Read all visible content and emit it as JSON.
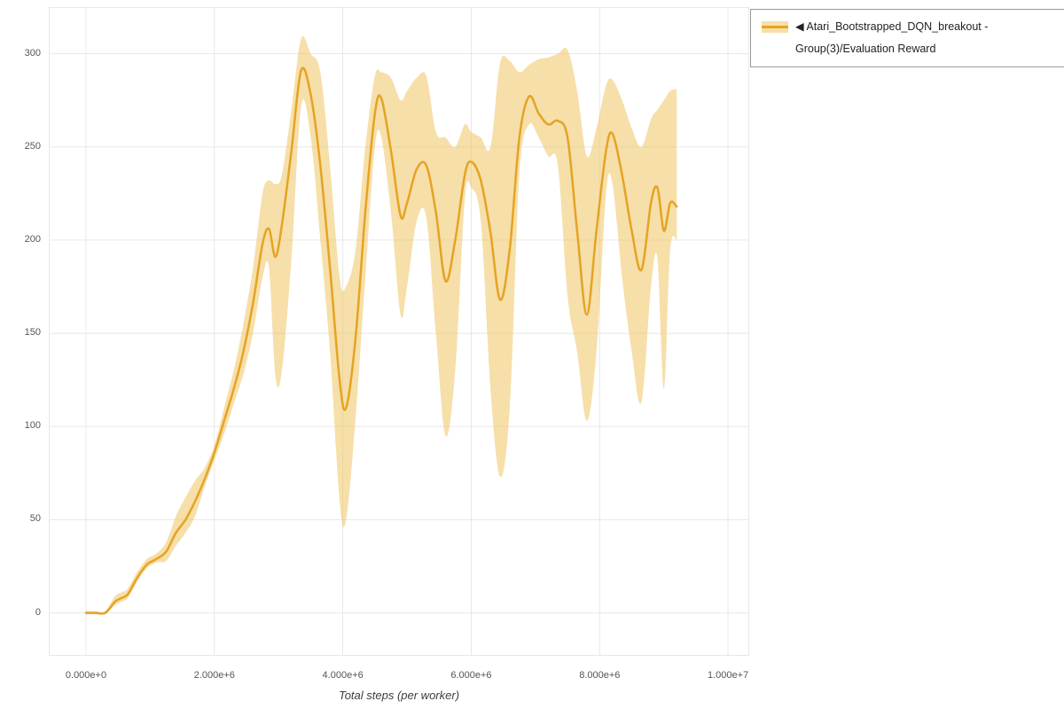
{
  "legend": {
    "marker": "◀",
    "label": "Atari_Bootstrapped_DQN_breakout - Group(3)/Evaluation Reward"
  },
  "chart_data": {
    "type": "line",
    "title": "",
    "xlabel": "Total steps (per worker)",
    "ylabel": "",
    "x_unit": "millions of steps",
    "xlim": [
      -0.58,
      10.33
    ],
    "ylim": [
      -23,
      325
    ],
    "grid": true,
    "legend_position": "top-right-outside",
    "x_ticks": {
      "values": [
        0,
        2,
        4,
        6,
        8,
        10
      ],
      "labels": [
        "0.000e+0",
        "2.000e+6",
        "4.000e+6",
        "6.000e+6",
        "8.000e+6",
        "1.000e+7"
      ]
    },
    "y_ticks": {
      "values": [
        0,
        50,
        100,
        150,
        200,
        250,
        300
      ],
      "labels": [
        "0",
        "50",
        "100",
        "150",
        "200",
        "250",
        "300"
      ]
    },
    "colors": {
      "grid": "#e8e8e8",
      "tick_text": "#555555",
      "axis_title": "#3d3d3d",
      "legend_border": "#999999",
      "background": "#ffffff"
    },
    "series": [
      {
        "name": "Atari_Bootstrapped_DQN_breakout - Group(3)/Evaluation Reward",
        "color": "#e6a323",
        "band_color": "#efc463",
        "band_opacity": 0.55,
        "x": [
          0,
          0.15,
          0.3,
          0.45,
          0.55,
          0.65,
          0.8,
          0.95,
          1.1,
          1.25,
          1.4,
          1.55,
          1.7,
          1.85,
          2,
          2.15,
          2.3,
          2.45,
          2.6,
          2.75,
          2.85,
          2.95,
          3.05,
          3.2,
          3.35,
          3.5,
          3.65,
          3.8,
          3.95,
          4.05,
          4.2,
          4.35,
          4.5,
          4.6,
          4.75,
          4.9,
          5,
          5.15,
          5.3,
          5.45,
          5.6,
          5.75,
          5.9,
          6,
          6.15,
          6.3,
          6.45,
          6.6,
          6.75,
          6.9,
          7.05,
          7.2,
          7.35,
          7.5,
          7.65,
          7.8,
          7.95,
          8.1,
          8.2,
          8.35,
          8.5,
          8.65,
          8.8,
          8.9,
          9,
          9.1,
          9.2
        ],
        "y": [
          0,
          0,
          0,
          6,
          8,
          10,
          19,
          26,
          29,
          33,
          43,
          50,
          60,
          72,
          86,
          103,
          120,
          140,
          166,
          198,
          206,
          191,
          208,
          248,
          291,
          278,
          240,
          185,
          125,
          110,
          148,
          215,
          268,
          276,
          248,
          213,
          220,
          238,
          240,
          215,
          178,
          200,
          235,
          242,
          232,
          204,
          168,
          195,
          255,
          277,
          268,
          262,
          264,
          255,
          205,
          160,
          205,
          248,
          257,
          235,
          205,
          184,
          220,
          228,
          205,
          220,
          218
        ],
        "y_lower": [
          0,
          0,
          0,
          4,
          6,
          8,
          17,
          24,
          27,
          28,
          36,
          43,
          52,
          68,
          82,
          96,
          112,
          128,
          150,
          180,
          185,
          127,
          130,
          190,
          272,
          255,
          200,
          140,
          60,
          50,
          105,
          180,
          250,
          255,
          215,
          160,
          175,
          210,
          212,
          150,
          95,
          130,
          222,
          228,
          210,
          120,
          73,
          110,
          235,
          262,
          255,
          245,
          240,
          170,
          140,
          103,
          140,
          225,
          230,
          180,
          140,
          113,
          175,
          190,
          120,
          195,
          200
        ],
        "y_upper": [
          1,
          1,
          1,
          9,
          11,
          13,
          22,
          29,
          32,
          38,
          52,
          62,
          71,
          78,
          90,
          110,
          130,
          155,
          185,
          225,
          232,
          230,
          235,
          270,
          308,
          300,
          290,
          240,
          180,
          175,
          195,
          250,
          288,
          290,
          287,
          275,
          280,
          287,
          288,
          258,
          255,
          250,
          262,
          258,
          255,
          250,
          295,
          296,
          290,
          294,
          297,
          298,
          300,
          302,
          280,
          245,
          260,
          283,
          286,
          275,
          260,
          250,
          265,
          270,
          275,
          280,
          281
        ]
      }
    ]
  }
}
